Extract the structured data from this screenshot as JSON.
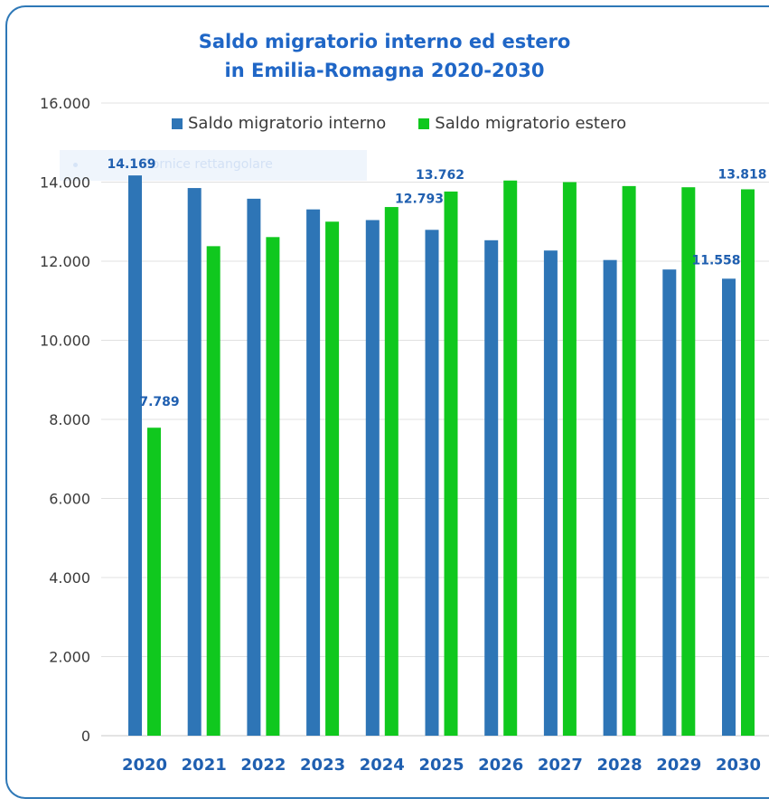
{
  "chart_data": {
    "type": "bar",
    "title": [
      "Saldo migratorio interno ed estero",
      "in Emilia-Romagna 2020-2030"
    ],
    "categories": [
      "2020",
      "2021",
      "2022",
      "2023",
      "2024",
      "2025",
      "2026",
      "2027",
      "2028",
      "2029",
      "2030"
    ],
    "series": [
      {
        "name": "Saldo migratorio interno",
        "color": "#2e75b6",
        "values": [
          14169,
          13850,
          13580,
          13310,
          13040,
          12793,
          12530,
          12270,
          12030,
          11790,
          11558
        ]
      },
      {
        "name": "Saldo migratorio estero",
        "color": "#10c81e",
        "values": [
          7789,
          12380,
          12610,
          13000,
          13370,
          13762,
          14040,
          14000,
          13900,
          13870,
          13818
        ]
      }
    ],
    "data_labels": [
      {
        "series": 0,
        "index": 0,
        "text": "14.169"
      },
      {
        "series": 1,
        "index": 0,
        "text": "7.789"
      },
      {
        "series": 0,
        "index": 5,
        "text": "12.793"
      },
      {
        "series": 1,
        "index": 5,
        "text": "13.762"
      },
      {
        "series": 0,
        "index": 10,
        "text": "11.558"
      },
      {
        "series": 1,
        "index": 10,
        "text": "13.818"
      }
    ],
    "yticks": [
      "0",
      "2.000",
      "4.000",
      "6.000",
      "8.000",
      "10.000",
      "12.000",
      "14.000",
      "16.000"
    ],
    "ylim": [
      0,
      16000
    ],
    "grid": true,
    "legend_position": "top"
  },
  "overlay_text": "Cornice rettangolare"
}
